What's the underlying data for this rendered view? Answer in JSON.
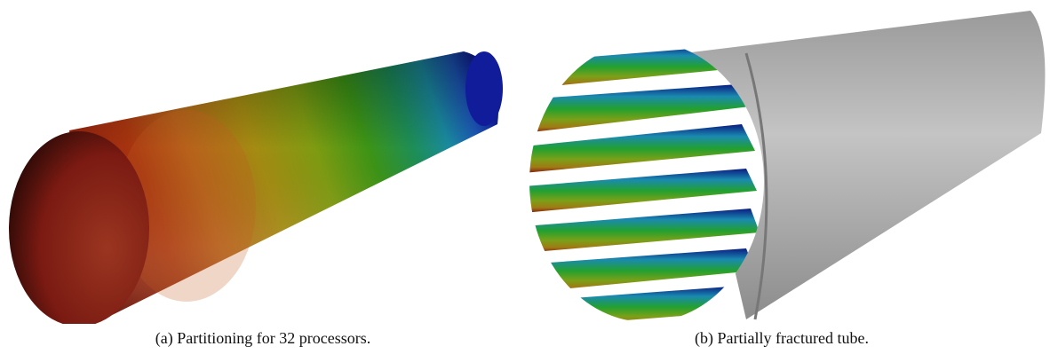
{
  "figures": [
    {
      "caption": "(a) Partitioning for 32 processors."
    },
    {
      "caption": "(b) Partially fractured tube."
    }
  ]
}
